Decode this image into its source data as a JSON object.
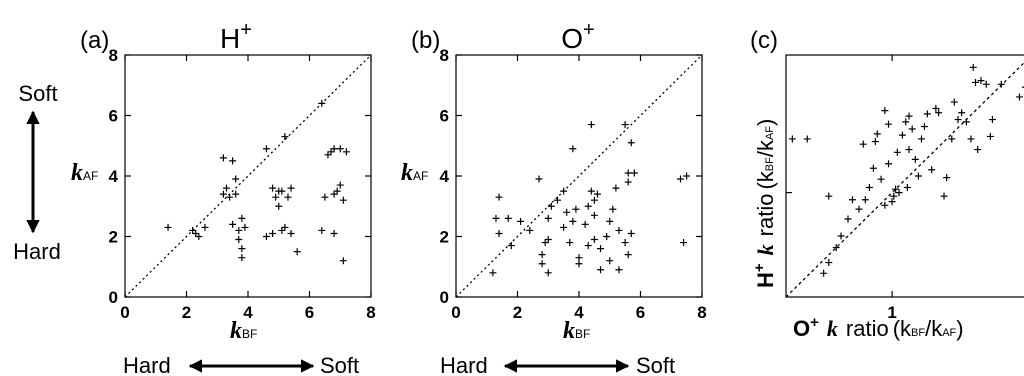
{
  "side_labels": {
    "soft": "Soft",
    "hard": "Hard"
  },
  "bottom_labels": {
    "hard": "Hard",
    "soft": "Soft"
  },
  "chart_data": [
    {
      "type": "scatter",
      "panel": "(a)",
      "title_base": "H",
      "title_sup": "+",
      "xlabel_var": "k",
      "xlabel_sub": "BF",
      "ylabel_var": "k",
      "ylabel_sub": "AF",
      "xlim": [
        0,
        8
      ],
      "ylim": [
        0,
        8
      ],
      "xticks": [
        0,
        2,
        4,
        6,
        8
      ],
      "yticks": [
        0,
        2,
        4,
        6,
        8
      ],
      "diagonal": true,
      "points": [
        [
          1.4,
          2.3
        ],
        [
          2.2,
          2.2
        ],
        [
          2.3,
          2.1
        ],
        [
          2.4,
          2.0
        ],
        [
          2.6,
          2.3
        ],
        [
          3.2,
          4.6
        ],
        [
          3.2,
          3.4
        ],
        [
          3.3,
          3.6
        ],
        [
          3.4,
          3.3
        ],
        [
          3.5,
          4.5
        ],
        [
          3.5,
          2.4
        ],
        [
          3.6,
          3.9
        ],
        [
          3.6,
          3.4
        ],
        [
          3.7,
          2.2
        ],
        [
          3.7,
          1.9
        ],
        [
          3.8,
          2.6
        ],
        [
          3.8,
          1.6
        ],
        [
          3.8,
          1.3
        ],
        [
          3.9,
          2.3
        ],
        [
          4.6,
          2.0
        ],
        [
          4.8,
          2.1
        ],
        [
          4.6,
          4.9
        ],
        [
          4.8,
          3.6
        ],
        [
          4.9,
          3.3
        ],
        [
          5.0,
          3.5
        ],
        [
          5.0,
          3.0
        ],
        [
          5.1,
          2.2
        ],
        [
          5.1,
          3.5
        ],
        [
          5.2,
          5.3
        ],
        [
          5.2,
          2.3
        ],
        [
          5.3,
          3.3
        ],
        [
          5.4,
          3.6
        ],
        [
          5.4,
          2.1
        ],
        [
          5.6,
          1.5
        ],
        [
          6.4,
          6.4
        ],
        [
          6.4,
          2.2
        ],
        [
          6.5,
          3.3
        ],
        [
          6.6,
          4.7
        ],
        [
          6.7,
          4.8
        ],
        [
          6.8,
          3.4
        ],
        [
          6.8,
          4.9
        ],
        [
          6.8,
          2.1
        ],
        [
          6.9,
          3.5
        ],
        [
          7.0,
          4.9
        ],
        [
          7.1,
          3.2
        ],
        [
          7.1,
          1.2
        ],
        [
          7.2,
          4.8
        ],
        [
          7.0,
          3.7
        ]
      ]
    },
    {
      "type": "scatter",
      "panel": "(b)",
      "title_base": "O",
      "title_sup": "+",
      "xlabel_var": "k",
      "xlabel_sub": "BF",
      "ylabel_var": "k",
      "ylabel_sub": "AF",
      "xlim": [
        0,
        8
      ],
      "ylim": [
        0,
        8
      ],
      "xticks": [
        0,
        2,
        4,
        6,
        8
      ],
      "yticks": [
        0,
        2,
        4,
        6,
        8
      ],
      "diagonal": true,
      "points": [
        [
          1.2,
          0.8
        ],
        [
          1.3,
          2.6
        ],
        [
          1.4,
          3.3
        ],
        [
          1.4,
          2.1
        ],
        [
          1.7,
          2.6
        ],
        [
          1.8,
          1.7
        ],
        [
          2.1,
          2.5
        ],
        [
          2.4,
          2.2
        ],
        [
          2.7,
          3.9
        ],
        [
          2.8,
          1.4
        ],
        [
          2.8,
          1.1
        ],
        [
          2.9,
          1.8
        ],
        [
          3.0,
          0.8
        ],
        [
          3.0,
          2.6
        ],
        [
          3.0,
          1.9
        ],
        [
          3.1,
          3.0
        ],
        [
          3.3,
          3.2
        ],
        [
          3.5,
          2.3
        ],
        [
          3.5,
          3.5
        ],
        [
          3.6,
          2.8
        ],
        [
          3.7,
          1.8
        ],
        [
          3.8,
          2.5
        ],
        [
          3.8,
          4.9
        ],
        [
          3.9,
          2.9
        ],
        [
          4.0,
          1.3
        ],
        [
          4.0,
          1.1
        ],
        [
          4.2,
          2.4
        ],
        [
          4.3,
          3.0
        ],
        [
          4.3,
          1.7
        ],
        [
          4.4,
          3.5
        ],
        [
          4.4,
          5.7
        ],
        [
          4.5,
          1.9
        ],
        [
          4.5,
          2.7
        ],
        [
          4.5,
          3.2
        ],
        [
          4.6,
          3.4
        ],
        [
          4.7,
          1.6
        ],
        [
          4.7,
          0.9
        ],
        [
          4.9,
          2.0
        ],
        [
          5.0,
          1.2
        ],
        [
          5.0,
          2.5
        ],
        [
          5.1,
          2.9
        ],
        [
          5.2,
          3.6
        ],
        [
          5.3,
          0.9
        ],
        [
          5.3,
          2.2
        ],
        [
          5.5,
          5.7
        ],
        [
          5.5,
          1.8
        ],
        [
          5.6,
          4.1
        ],
        [
          5.6,
          3.8
        ],
        [
          5.7,
          5.1
        ],
        [
          5.8,
          4.1
        ],
        [
          5.6,
          1.4
        ],
        [
          5.7,
          2.1
        ],
        [
          7.3,
          3.9
        ],
        [
          7.4,
          1.8
        ],
        [
          7.5,
          4.0
        ]
      ]
    },
    {
      "type": "scatter",
      "panel": "(c)",
      "xscale": "log",
      "yscale": "log",
      "xlim": [
        0.55,
        2.2
      ],
      "ylim": [
        0.55,
        2.2
      ],
      "xticks": [
        1
      ],
      "yticks": [
        1
      ],
      "xlabel_ion": "O",
      "xlabel_sup": "+",
      "xlabel_k": "k",
      "xlabel_word": "ratio",
      "xlabel_expr": "(k",
      "xlabel_sub1": "BF",
      "xlabel_slash": "/k",
      "xlabel_sub2": "AF",
      "xlabel_close": ")",
      "ylabel_ion": "H",
      "ylabel_sup": "+",
      "ylabel_k": "k",
      "ylabel_word": "ratio",
      "ylabel_expr": "(k",
      "ylabel_sub1": "BF",
      "ylabel_slash": "/k",
      "ylabel_sub2": "AF",
      "ylabel_close": ")",
      "diagonal": true,
      "points": [
        [
          0.57,
          1.36
        ],
        [
          0.62,
          1.36
        ],
        [
          0.68,
          0.63
        ],
        [
          0.7,
          0.98
        ],
        [
          0.7,
          0.67
        ],
        [
          0.73,
          0.73
        ],
        [
          0.75,
          0.78
        ],
        [
          0.78,
          0.86
        ],
        [
          0.8,
          0.96
        ],
        [
          0.83,
          0.91
        ],
        [
          0.85,
          1.32
        ],
        [
          0.86,
          0.96
        ],
        [
          0.88,
          1.03
        ],
        [
          0.9,
          1.15
        ],
        [
          0.91,
          1.34
        ],
        [
          0.92,
          1.4
        ],
        [
          0.94,
          1.08
        ],
        [
          0.96,
          1.6
        ],
        [
          0.96,
          0.93
        ],
        [
          0.98,
          1.18
        ],
        [
          0.98,
          1.48
        ],
        [
          1.0,
          0.95
        ],
        [
          1.01,
          0.98
        ],
        [
          1.02,
          1.02
        ],
        [
          1.03,
          1.26
        ],
        [
          1.04,
          1.0
        ],
        [
          1.06,
          1.39
        ],
        [
          1.08,
          1.5
        ],
        [
          1.09,
          1.03
        ],
        [
          1.1,
          1.55
        ],
        [
          1.1,
          1.28
        ],
        [
          1.12,
          1.44
        ],
        [
          1.14,
          1.21
        ],
        [
          1.16,
          1.1
        ],
        [
          1.18,
          1.36
        ],
        [
          1.2,
          1.46
        ],
        [
          1.22,
          1.57
        ],
        [
          1.25,
          1.14
        ],
        [
          1.28,
          1.62
        ],
        [
          1.3,
          1.58
        ],
        [
          1.34,
          0.98
        ],
        [
          1.36,
          1.09
        ],
        [
          1.4,
          1.36
        ],
        [
          1.42,
          1.68
        ],
        [
          1.45,
          1.52
        ],
        [
          1.48,
          1.58
        ],
        [
          1.52,
          1.5
        ],
        [
          1.56,
          1.36
        ],
        [
          1.58,
          2.05
        ],
        [
          1.6,
          1.88
        ],
        [
          1.62,
          1.28
        ],
        [
          1.65,
          1.9
        ],
        [
          1.7,
          1.86
        ],
        [
          1.72,
          2.32
        ],
        [
          1.74,
          1.38
        ],
        [
          1.76,
          1.52
        ],
        [
          1.85,
          1.86
        ],
        [
          2.05,
          1.73
        ],
        [
          2.12,
          1.83
        ]
      ]
    }
  ]
}
